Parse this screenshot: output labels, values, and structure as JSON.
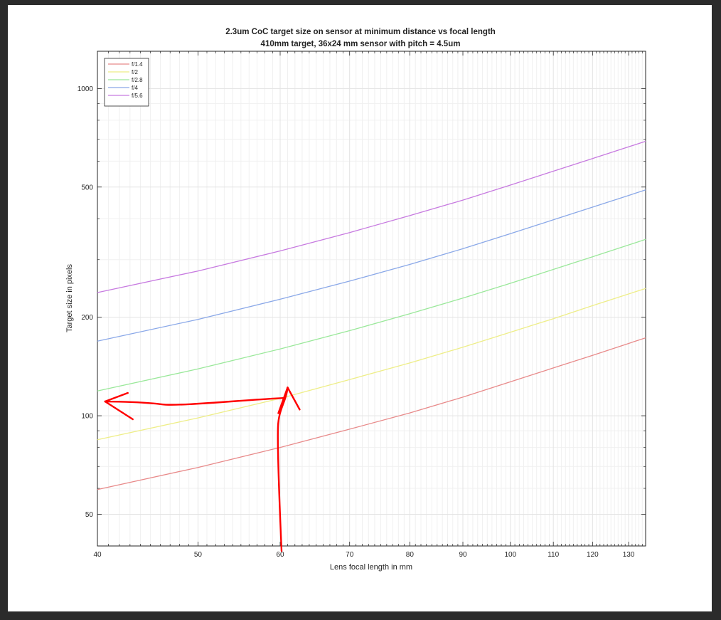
{
  "chart_data": {
    "type": "line",
    "title": "2.3um CoC target size on sensor at minimum distance vs focal length",
    "subtitle": "410mm target, 36x24 mm sensor with pitch = 4.5um",
    "xlabel": "Lens focal length in mm",
    "ylabel": "Target size in pixels",
    "x_scale": "log",
    "y_scale": "log",
    "xlim": [
      40,
      135
    ],
    "ylim": [
      40,
      1300
    ],
    "x_ticks": [
      40,
      50,
      60,
      70,
      80,
      90,
      100,
      110,
      120,
      130
    ],
    "y_ticks": [
      50,
      100,
      200,
      500,
      1000
    ],
    "grid": true,
    "legend_position": "top-left",
    "series": [
      {
        "name": "f/1.4",
        "color": "#e88a8a",
        "x": [
          40,
          50,
          60,
          70,
          80,
          90,
          100,
          110,
          120,
          135
        ],
        "values": [
          59.5,
          69.5,
          80,
          91,
          102,
          114,
          127,
          140,
          153,
          173
        ]
      },
      {
        "name": "f/2",
        "color": "#eeee88",
        "x": [
          40,
          50,
          60,
          70,
          80,
          90,
          100,
          110,
          120,
          135
        ],
        "values": [
          84.5,
          98.5,
          113,
          129,
          145,
          162,
          180,
          198,
          217,
          245
        ]
      },
      {
        "name": "f/2.8",
        "color": "#9ae89a",
        "x": [
          40,
          50,
          60,
          70,
          80,
          90,
          100,
          110,
          120,
          135
        ],
        "values": [
          119,
          139,
          160,
          182,
          205,
          229,
          254,
          280,
          306,
          346
        ]
      },
      {
        "name": "f/4",
        "color": "#8aa8e8",
        "x": [
          40,
          50,
          60,
          70,
          80,
          90,
          100,
          110,
          120,
          135
        ],
        "values": [
          169,
          197,
          227,
          258,
          290,
          324,
          360,
          397,
          434,
          490
        ]
      },
      {
        "name": "f/5.6",
        "color": "#c77ae0",
        "x": [
          40,
          50,
          60,
          70,
          80,
          90,
          100,
          110,
          120,
          135
        ],
        "values": [
          238,
          277,
          319,
          363,
          409,
          456,
          507,
          559,
          611,
          690
        ]
      }
    ],
    "annotations": [
      {
        "type": "hand-drawn-arrow",
        "color": "#ff0000",
        "from": [
          60,
          38
        ],
        "to": [
          61,
          122
        ]
      },
      {
        "type": "hand-drawn-arrow",
        "color": "#ff0000",
        "from": [
          60,
          110
        ],
        "to": [
          40.3,
          110
        ]
      }
    ]
  }
}
